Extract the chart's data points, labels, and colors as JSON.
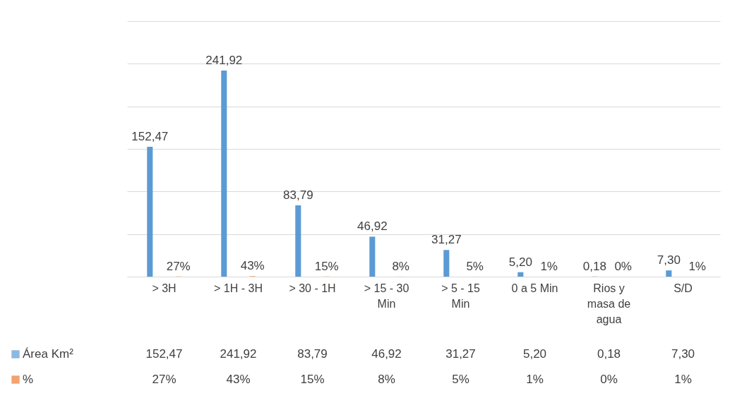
{
  "chart_data": {
    "type": "bar",
    "categories": [
      "> 3H",
      "> 1H - 3H",
      "> 30 - 1H",
      "> 15 - 30 Min",
      "> 5 - 15 Min",
      "0 a 5 Min",
      "Rios y masa de agua",
      "S/D"
    ],
    "series": [
      {
        "name": "Área Km²",
        "color": "#5b9bd5",
        "values": [
          152.47,
          241.92,
          83.79,
          46.92,
          31.27,
          5.2,
          0.18,
          7.3
        ],
        "value_labels": [
          "152,47",
          "241,92",
          "83,79",
          "46,92",
          "31,27",
          "5,20",
          "0,18",
          "7,30"
        ]
      },
      {
        "name": "%",
        "color": "#ed7d31",
        "values": [
          0.27,
          0.43,
          0.15,
          0.08,
          0.05,
          0.01,
          0.0,
          0.01
        ],
        "value_labels": [
          "27%",
          "43%",
          "15%",
          "8%",
          "5%",
          "1%",
          "0%",
          "1%"
        ]
      }
    ],
    "ylim": [
      0,
      300
    ],
    "yticks": [
      {
        "value": 0,
        "label": null
      },
      {
        "value": 50,
        "label": null
      },
      {
        "value": 100,
        "label": null
      },
      {
        "value": 150,
        "label": null
      },
      {
        "value": 200,
        "label": null
      },
      {
        "value": 250,
        "label": null
      },
      {
        "value": 300,
        "label": null
      }
    ],
    "tick_labels": "x",
    "grid": "y",
    "legend": "bottom",
    "data_labels": true
  }
}
